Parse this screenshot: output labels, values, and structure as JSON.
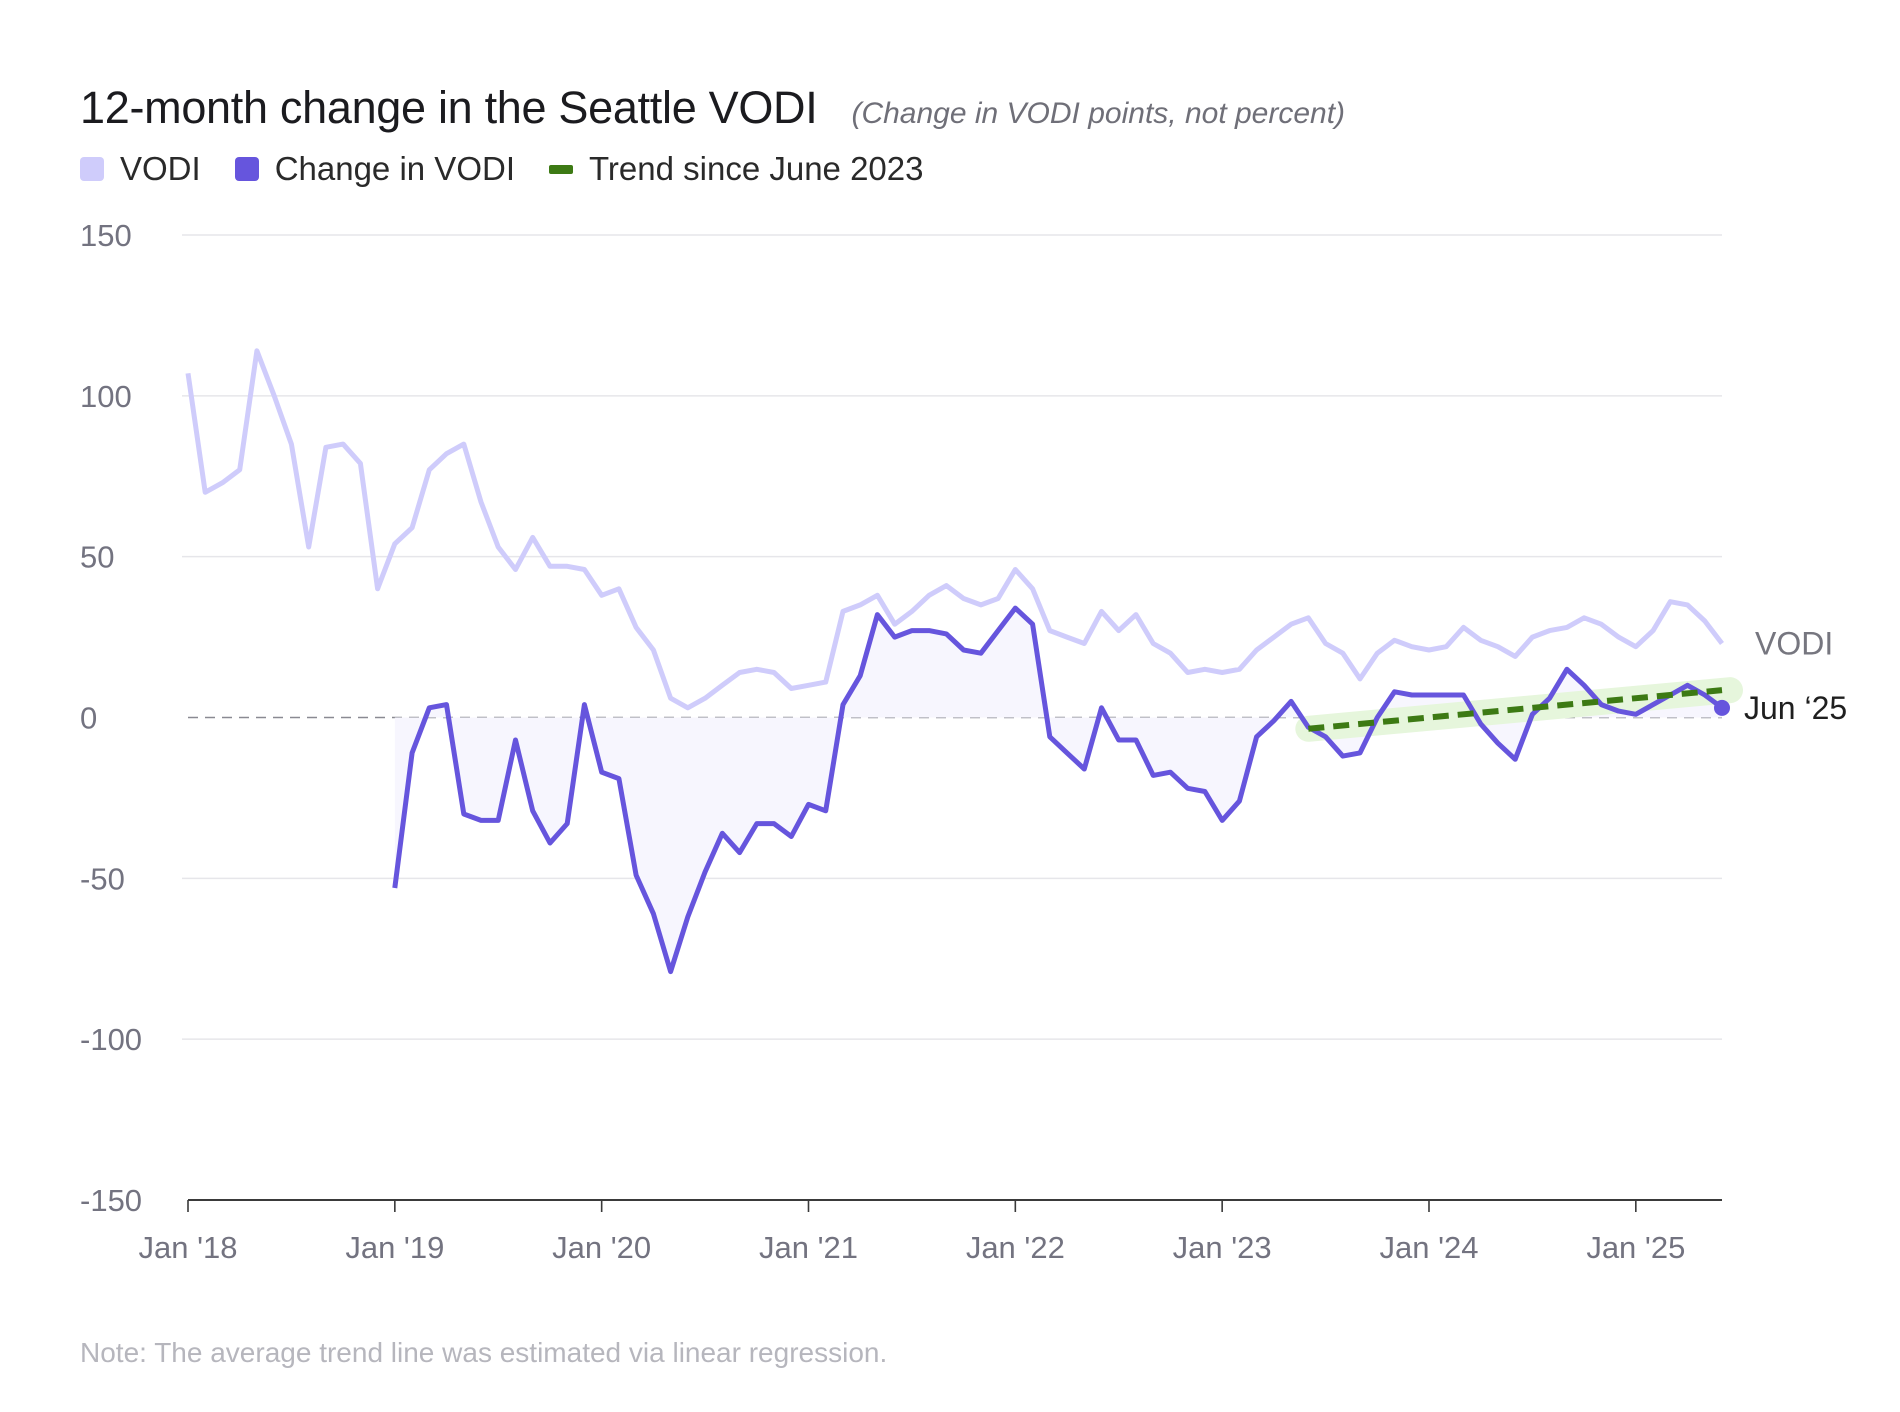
{
  "title": "12-month change in the Seattle VODI",
  "subtitle": "(Change in VODI points, not percent)",
  "note": "Note: The average trend line was estimated via linear regression.",
  "legend": [
    {
      "label": "VODI",
      "color": "#cfccfb"
    },
    {
      "label": "Change in VODI",
      "color": "#6655dd"
    },
    {
      "label": "Trend since June 2023",
      "color": "#3d7a14"
    }
  ],
  "colors": {
    "vodi": "#cfccfb",
    "change": "#6655dd",
    "trend": "#3d7a14",
    "trend_band": "#e6f6dc",
    "fill": "#f7f6fe",
    "grid": "#e6e6ea",
    "axis": "#3a3a3a",
    "tick": "#737380"
  },
  "chart_data": {
    "type": "line",
    "title": "12-month change in the Seattle VODI",
    "subtitle": "(Change in VODI points, not percent)",
    "ylim": [
      -150,
      150
    ],
    "yticks": [
      150,
      100,
      50,
      0,
      -50,
      -100,
      -150
    ],
    "ytick_labels": [
      "150",
      "100",
      "50",
      "0",
      "-50",
      "-100",
      "-150"
    ],
    "xlim": [
      "2018-01",
      "2025-06"
    ],
    "xticks": [
      "2018-01",
      "2019-01",
      "2020-01",
      "2021-01",
      "2022-01",
      "2023-01",
      "2024-01",
      "2025-01"
    ],
    "xtick_labels": [
      "Jan '18",
      "Jan '19",
      "Jan '20",
      "Jan '21",
      "Jan '22",
      "Jan '23",
      "Jan '24",
      "Jan '25"
    ],
    "grid": true,
    "zero_line": "dashed",
    "series": [
      {
        "name": "VODI",
        "points": [
          [
            "2018-01",
            107
          ],
          [
            "2018-02",
            70
          ],
          [
            "2018-03",
            73
          ],
          [
            "2018-04",
            77
          ],
          [
            "2018-05",
            114
          ],
          [
            "2018-06",
            100
          ],
          [
            "2018-07",
            85
          ],
          [
            "2018-08",
            53
          ],
          [
            "2018-09",
            84
          ],
          [
            "2018-10",
            85
          ],
          [
            "2018-11",
            79
          ],
          [
            "2018-12",
            40
          ],
          [
            "2019-01",
            54
          ],
          [
            "2019-02",
            59
          ],
          [
            "2019-03",
            77
          ],
          [
            "2019-04",
            82
          ],
          [
            "2019-05",
            85
          ],
          [
            "2019-06",
            67
          ],
          [
            "2019-07",
            53
          ],
          [
            "2019-08",
            46
          ],
          [
            "2019-09",
            56
          ],
          [
            "2019-10",
            47
          ],
          [
            "2019-11",
            47
          ],
          [
            "2019-12",
            46
          ],
          [
            "2020-01",
            38
          ],
          [
            "2020-02",
            40
          ],
          [
            "2020-03",
            28
          ],
          [
            "2020-04",
            21
          ],
          [
            "2020-05",
            6
          ],
          [
            "2020-06",
            3
          ],
          [
            "2020-07",
            6
          ],
          [
            "2020-08",
            10
          ],
          [
            "2020-09",
            14
          ],
          [
            "2020-10",
            15
          ],
          [
            "2020-11",
            14
          ],
          [
            "2020-12",
            9
          ],
          [
            "2021-01",
            10
          ],
          [
            "2021-02",
            11
          ],
          [
            "2021-03",
            33
          ],
          [
            "2021-04",
            35
          ],
          [
            "2021-05",
            38
          ],
          [
            "2021-06",
            29
          ],
          [
            "2021-07",
            33
          ],
          [
            "2021-08",
            38
          ],
          [
            "2021-09",
            41
          ],
          [
            "2021-10",
            37
          ],
          [
            "2021-11",
            35
          ],
          [
            "2021-12",
            37
          ],
          [
            "2022-01",
            46
          ],
          [
            "2022-02",
            40
          ],
          [
            "2022-03",
            27
          ],
          [
            "2022-04",
            25
          ],
          [
            "2022-05",
            23
          ],
          [
            "2022-06",
            33
          ],
          [
            "2022-07",
            27
          ],
          [
            "2022-08",
            32
          ],
          [
            "2022-09",
            23
          ],
          [
            "2022-10",
            20
          ],
          [
            "2022-11",
            14
          ],
          [
            "2022-12",
            15
          ],
          [
            "2023-01",
            14
          ],
          [
            "2023-02",
            15
          ],
          [
            "2023-03",
            21
          ],
          [
            "2023-04",
            25
          ],
          [
            "2023-05",
            29
          ],
          [
            "2023-06",
            31
          ],
          [
            "2023-07",
            23
          ],
          [
            "2023-08",
            20
          ],
          [
            "2023-09",
            12
          ],
          [
            "2023-10",
            20
          ],
          [
            "2023-11",
            24
          ],
          [
            "2023-12",
            22
          ],
          [
            "2024-01",
            21
          ],
          [
            "2024-02",
            22
          ],
          [
            "2024-03",
            28
          ],
          [
            "2024-04",
            24
          ],
          [
            "2024-05",
            22
          ],
          [
            "2024-06",
            19
          ],
          [
            "2024-07",
            25
          ],
          [
            "2024-08",
            27
          ],
          [
            "2024-09",
            28
          ],
          [
            "2024-10",
            31
          ],
          [
            "2024-11",
            29
          ],
          [
            "2024-12",
            25
          ],
          [
            "2025-01",
            22
          ],
          [
            "2025-02",
            27
          ],
          [
            "2025-03",
            36
          ],
          [
            "2025-04",
            35
          ],
          [
            "2025-05",
            30
          ],
          [
            "2025-06",
            23
          ]
        ]
      },
      {
        "name": "Change in VODI",
        "points": [
          [
            "2019-01",
            -53
          ],
          [
            "2019-02",
            -11
          ],
          [
            "2019-03",
            3
          ],
          [
            "2019-04",
            4
          ],
          [
            "2019-05",
            -30
          ],
          [
            "2019-06",
            -32
          ],
          [
            "2019-07",
            -32
          ],
          [
            "2019-08",
            -7
          ],
          [
            "2019-09",
            -29
          ],
          [
            "2019-10",
            -39
          ],
          [
            "2019-11",
            -33
          ],
          [
            "2019-12",
            4
          ],
          [
            "2020-01",
            -17
          ],
          [
            "2020-02",
            -19
          ],
          [
            "2020-03",
            -49
          ],
          [
            "2020-04",
            -61
          ],
          [
            "2020-05",
            -79
          ],
          [
            "2020-06",
            -62
          ],
          [
            "2020-07",
            -48
          ],
          [
            "2020-08",
            -36
          ],
          [
            "2020-09",
            -42
          ],
          [
            "2020-10",
            -33
          ],
          [
            "2020-11",
            -33
          ],
          [
            "2020-12",
            -37
          ],
          [
            "2021-01",
            -27
          ],
          [
            "2021-02",
            -29
          ],
          [
            "2021-03",
            4
          ],
          [
            "2021-04",
            13
          ],
          [
            "2021-05",
            32
          ],
          [
            "2021-06",
            25
          ],
          [
            "2021-07",
            27
          ],
          [
            "2021-08",
            27
          ],
          [
            "2021-09",
            26
          ],
          [
            "2021-10",
            21
          ],
          [
            "2021-11",
            20
          ],
          [
            "2021-12",
            27
          ],
          [
            "2022-01",
            34
          ],
          [
            "2022-02",
            29
          ],
          [
            "2022-03",
            -6
          ],
          [
            "2022-04",
            -11
          ],
          [
            "2022-05",
            -16
          ],
          [
            "2022-06",
            3
          ],
          [
            "2022-07",
            -7
          ],
          [
            "2022-08",
            -7
          ],
          [
            "2022-09",
            -18
          ],
          [
            "2022-10",
            -17
          ],
          [
            "2022-11",
            -22
          ],
          [
            "2022-12",
            -23
          ],
          [
            "2023-01",
            -32
          ],
          [
            "2023-02",
            -26
          ],
          [
            "2023-03",
            -6
          ],
          [
            "2023-04",
            -1
          ],
          [
            "2023-05",
            5
          ],
          [
            "2023-06",
            -3
          ],
          [
            "2023-07",
            -6
          ],
          [
            "2023-08",
            -12
          ],
          [
            "2023-09",
            -11
          ],
          [
            "2023-10",
            0
          ],
          [
            "2023-11",
            8
          ],
          [
            "2023-12",
            7
          ],
          [
            "2024-01",
            7
          ],
          [
            "2024-02",
            7
          ],
          [
            "2024-03",
            7
          ],
          [
            "2024-04",
            -2
          ],
          [
            "2024-05",
            -8
          ],
          [
            "2024-06",
            -13
          ],
          [
            "2024-07",
            1
          ],
          [
            "2024-08",
            6
          ],
          [
            "2024-09",
            15
          ],
          [
            "2024-10",
            10
          ],
          [
            "2024-11",
            4
          ],
          [
            "2024-12",
            2
          ],
          [
            "2025-01",
            1
          ],
          [
            "2025-02",
            4
          ],
          [
            "2025-03",
            7
          ],
          [
            "2025-04",
            10
          ],
          [
            "2025-05",
            7
          ],
          [
            "2025-06",
            3
          ]
        ]
      },
      {
        "name": "Trend since June 2023",
        "style": "dashed",
        "points": [
          [
            "2023-06",
            -3.5
          ],
          [
            "2025-06",
            8.5
          ]
        ]
      }
    ],
    "annotations": [
      {
        "text": "VODI",
        "series": "VODI",
        "at": "2025-06"
      },
      {
        "text": "Jun ‘25",
        "series": "Change in VODI",
        "at": "2025-06",
        "marker": "dot"
      }
    ],
    "legend": {
      "position": "top-left",
      "entries": [
        "VODI",
        "Change in VODI",
        "Trend since June 2023"
      ]
    }
  }
}
